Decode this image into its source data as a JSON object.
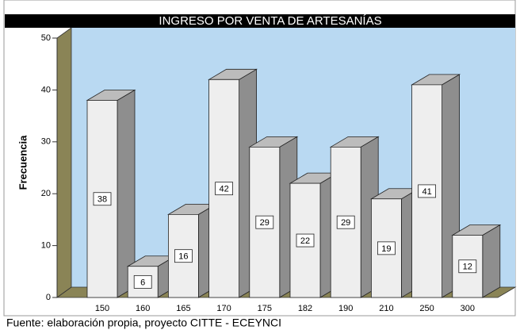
{
  "chart_data": {
    "type": "bar3d",
    "title": "INGRESO POR VENTA DE ARTESANÍAS",
    "y_label": "Frecuencia",
    "categories": [
      "150",
      "160",
      "165",
      "170",
      "175",
      "182",
      "190",
      "210",
      "250",
      "300"
    ],
    "values": [
      38,
      6,
      16,
      42,
      29,
      22,
      29,
      19,
      41,
      12
    ],
    "color": "#eeeeee",
    "ylim": [
      0,
      50
    ],
    "yticks": [
      0,
      10,
      20,
      30,
      40,
      50
    ],
    "source": "Fuente: elaboración propia, proyecto CITTE - ECEYNCI"
  }
}
